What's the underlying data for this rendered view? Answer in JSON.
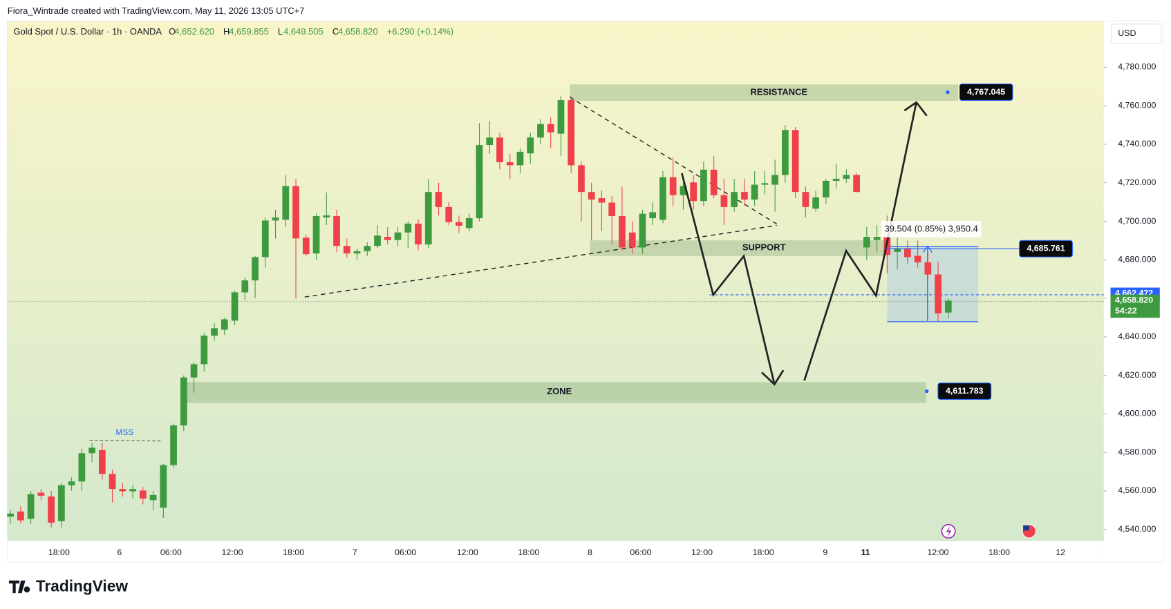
{
  "chart_data": {
    "type": "candlestick",
    "attribution": "Fiora_Wintrade created with TradingView.com, May 11, 2026 13:05 UTC+7",
    "title": "Gold Spot / U.S. Dollar · 1h · OANDA",
    "ohlc_legend": [
      {
        "key": "O",
        "value": "4,652.620"
      },
      {
        "key": "H",
        "value": "4,659.855"
      },
      {
        "key": "L",
        "value": "4,649.505"
      },
      {
        "key": "C",
        "value": "4,658.820"
      }
    ],
    "change": "+6.290 (+0.14%)",
    "currency": "USD",
    "brand": "TradingView",
    "up_color": "#3d9a3f",
    "down_color": "#f0404a",
    "ylim": [
      4534,
      4804
    ],
    "yticks": [
      {
        "value": 4540,
        "label": "4,540.000"
      },
      {
        "value": 4560,
        "label": "4,560.000"
      },
      {
        "value": 4580,
        "label": "4,580.000"
      },
      {
        "value": 4600,
        "label": "4,600.000"
      },
      {
        "value": 4620,
        "label": "4,620.000"
      },
      {
        "value": 4640,
        "label": "4,640.000"
      },
      {
        "value": 4660,
        "label": "4,660.000"
      },
      {
        "value": 4680,
        "label": "4,680.000"
      },
      {
        "value": 4700,
        "label": "4,700.000"
      },
      {
        "value": 4720,
        "label": "4,720.000"
      },
      {
        "value": 4740,
        "label": "4,740.000"
      },
      {
        "value": 4760,
        "label": "4,760.000"
      },
      {
        "value": 4780,
        "label": "4,780.000"
      }
    ],
    "xtick_labels": [
      "18:00",
      "6",
      "06:00",
      "12:00",
      "18:00",
      "7",
      "06:00",
      "12:00",
      "18:00",
      "8",
      "06:00",
      "12:00",
      "18:00",
      "9",
      "11",
      "12:00",
      "18:00",
      "12"
    ],
    "candles": [
      [
        4546.6,
        4550,
        4543,
        4548.2
      ],
      [
        4549.3,
        4552,
        4543,
        4544.7
      ],
      [
        4545.5,
        4560,
        4543,
        4558.3
      ],
      [
        4559.1,
        4561,
        4555,
        4557.5
      ],
      [
        4557.1,
        4560,
        4541,
        4543.5
      ],
      [
        4544.3,
        4564,
        4541,
        4562.9
      ],
      [
        4562.9,
        4567,
        4560,
        4564.9
      ],
      [
        4564.9,
        4582,
        4560,
        4579.6
      ],
      [
        4579.6,
        4585,
        4575,
        4582.4
      ],
      [
        4581.2,
        4585,
        4566,
        4568.8
      ],
      [
        4568.8,
        4571,
        4554,
        4561.0
      ],
      [
        4561.0,
        4564,
        4557,
        4559.8
      ],
      [
        4559.8,
        4563,
        4556,
        4561.0
      ],
      [
        4560.2,
        4562,
        4553,
        4556.0
      ],
      [
        4555.2,
        4560,
        4550,
        4557.9
      ],
      [
        4551.3,
        4574,
        4546,
        4573.4
      ],
      [
        4573.4,
        4595,
        4572,
        4594.0
      ],
      [
        4594.0,
        4620,
        4591,
        4618.9
      ],
      [
        4618.9,
        4627,
        4611,
        4625.8
      ],
      [
        4625.8,
        4642,
        4622,
        4640.6
      ],
      [
        4640.6,
        4647,
        4638,
        4644.5
      ],
      [
        4643.7,
        4650,
        4641,
        4649.1
      ],
      [
        4648.4,
        4664,
        4646,
        4663.1
      ],
      [
        4663.1,
        4671,
        4659,
        4669.3
      ],
      [
        4669.3,
        4682,
        4660,
        4681.4
      ],
      [
        4681.4,
        4702,
        4676,
        4700.4
      ],
      [
        4700.4,
        4706,
        4691,
        4702.0
      ],
      [
        4700.8,
        4724,
        4697,
        4718.3
      ],
      [
        4718.3,
        4722,
        4660,
        4691.1
      ],
      [
        4691.5,
        4693,
        4682,
        4682.9
      ],
      [
        4683.3,
        4704,
        4680,
        4702.7
      ],
      [
        4702.0,
        4715,
        4698,
        4703.1
      ],
      [
        4702.7,
        4706,
        4684,
        4687.2
      ],
      [
        4687.2,
        4691,
        4681,
        4683.3
      ],
      [
        4683.3,
        4686,
        4680,
        4684.5
      ],
      [
        4684.5,
        4689,
        4682,
        4687.2
      ],
      [
        4687.2,
        4698,
        4686,
        4692.6
      ],
      [
        4691.9,
        4697,
        4688,
        4690.3
      ],
      [
        4690.3,
        4697,
        4687,
        4694.2
      ],
      [
        4694.2,
        4700,
        4686,
        4698.8
      ],
      [
        4698.8,
        4701,
        4685,
        4688.0
      ],
      [
        4688.0,
        4722,
        4686,
        4715.2
      ],
      [
        4715.2,
        4720,
        4703,
        4707.4
      ],
      [
        4707.4,
        4710,
        4698,
        4699.6
      ],
      [
        4699.6,
        4703,
        4694,
        4697.7
      ],
      [
        4696.5,
        4704,
        4695,
        4701.6
      ],
      [
        4701.6,
        4751,
        4700,
        4739.6
      ],
      [
        4739.6,
        4752,
        4735,
        4743.5
      ],
      [
        4743.5,
        4746,
        4727,
        4730.7
      ],
      [
        4730.7,
        4735,
        4722,
        4729.1
      ],
      [
        4729.1,
        4738,
        4725,
        4736.1
      ],
      [
        4735.3,
        4746,
        4730,
        4743.5
      ],
      [
        4743.5,
        4753,
        4740,
        4750.5
      ],
      [
        4750.5,
        4754,
        4738,
        4746.2
      ],
      [
        4745.5,
        4765,
        4734,
        4762.9
      ],
      [
        4762.9,
        4765,
        4725,
        4729.1
      ],
      [
        4729.1,
        4731,
        4700,
        4715.2
      ],
      [
        4715.2,
        4720,
        4690,
        4711.3
      ],
      [
        4712.0,
        4716,
        4695,
        4709.7
      ],
      [
        4709.7,
        4713,
        4688,
        4702.7
      ],
      [
        4702.7,
        4718,
        4685,
        4686.4
      ],
      [
        4694.2,
        4700,
        4683,
        4686.4
      ],
      [
        4686.4,
        4706,
        4683,
        4703.9
      ],
      [
        4701.6,
        4710,
        4698,
        4704.7
      ],
      [
        4700.8,
        4726,
        4699,
        4722.9
      ],
      [
        4722.9,
        4733,
        4708,
        4713.6
      ],
      [
        4713.6,
        4720,
        4706,
        4718.3
      ],
      [
        4720.2,
        4724,
        4706,
        4710.5
      ],
      [
        4710.5,
        4731,
        4708,
        4726.8
      ],
      [
        4726.8,
        4734,
        4712,
        4713.6
      ],
      [
        4713.6,
        4722,
        4698,
        4707.4
      ],
      [
        4707.4,
        4722,
        4705,
        4715.2
      ],
      [
        4715.2,
        4722,
        4708,
        4711.3
      ],
      [
        4711.3,
        4726,
        4708,
        4719.0
      ],
      [
        4719.0,
        4726,
        4714,
        4719.8
      ],
      [
        4719.0,
        4732,
        4705,
        4724.1
      ],
      [
        4724.1,
        4750,
        4720,
        4747.4
      ],
      [
        4747.4,
        4749,
        4712,
        4715.2
      ],
      [
        4715.2,
        4718,
        4702,
        4707.4
      ],
      [
        4706.6,
        4716,
        4705,
        4712.4
      ],
      [
        4712.4,
        4722,
        4709,
        4721.0
      ],
      [
        4721.0,
        4730,
        4717,
        4722.1
      ],
      [
        4722.1,
        4727,
        4720,
        4724.1
      ],
      [
        4724.1,
        4725,
        4715,
        4715.2
      ],
      [
        4686.4,
        4697,
        4680,
        4691.9
      ],
      [
        4690.3,
        4698,
        4684,
        4691.9
      ],
      [
        4691.9,
        4703,
        4673,
        4682.5
      ],
      [
        4684.1,
        4692,
        4675,
        4686.0
      ],
      [
        4686.0,
        4690,
        4678,
        4681.4
      ],
      [
        4682.1,
        4690,
        4676,
        4678.7
      ],
      [
        4678.7,
        4684,
        4670,
        4672.4
      ],
      [
        4672.4,
        4679,
        4648,
        4652.2
      ],
      [
        4652.62,
        4659.855,
        4649.505,
        4658.82
      ]
    ],
    "zones": [
      {
        "text": "RESISTANCE",
        "price": {
          "value": 4767.045,
          "label": "4,767.045"
        }
      },
      {
        "text": "SUPPORT",
        "price": {
          "value": 4685.761,
          "label": "4,685.761"
        }
      },
      {
        "text": "ZONE",
        "price": {
          "value": 4611.783,
          "label": "4,611.783"
        }
      }
    ],
    "annotation_mss": "MSS",
    "measure_text": "39.504 (0.85%) 3,950.4",
    "marker_price": {
      "value": 4662.472,
      "label": "4,662.472"
    },
    "last_price": {
      "value": 4658.82,
      "label": "4,658.820"
    },
    "countdown": "54:22"
  }
}
